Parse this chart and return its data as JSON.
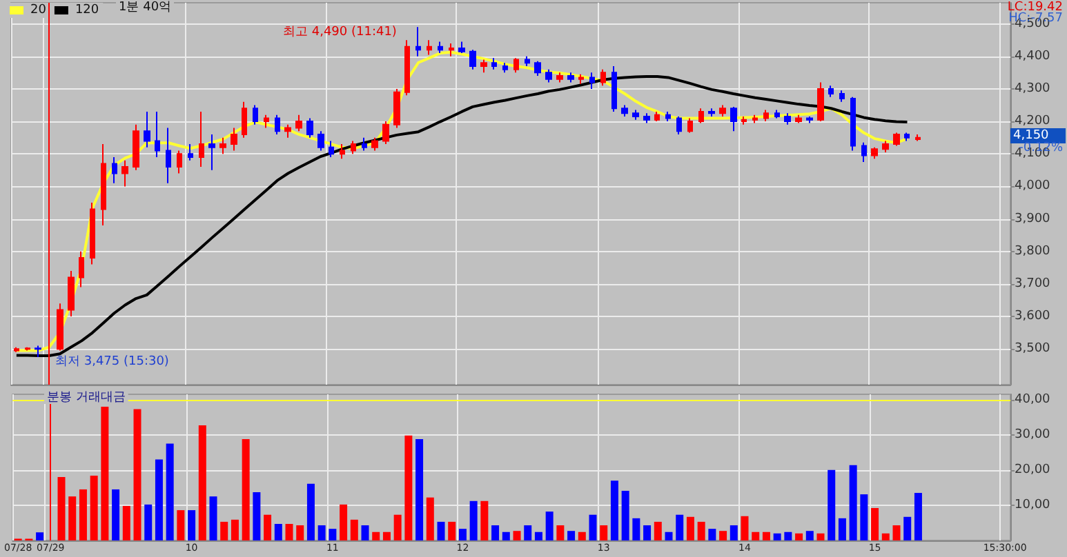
{
  "chart_data": [
    {
      "type": "candlestick",
      "title": "1분 40억",
      "legend": "top left",
      "grid": true,
      "tick_labels": "y",
      "marker": "none",
      "categories": [
        "07/28",
        null,
        null,
        "07/29",
        null,
        null,
        null,
        null,
        null,
        null,
        null,
        null,
        null,
        null,
        null,
        null,
        "10",
        null,
        null,
        null,
        null,
        null,
        null,
        null,
        null,
        null,
        null,
        null,
        null,
        "11",
        null,
        null,
        null,
        null,
        null,
        null,
        null,
        null,
        null,
        null,
        null,
        "12",
        null,
        null,
        null,
        null,
        null,
        null,
        null,
        null,
        null,
        null,
        null,
        null,
        "13",
        null,
        null,
        null,
        null,
        null,
        null,
        null,
        null,
        null,
        null,
        null,
        null,
        "14",
        null,
        null,
        null,
        null,
        null,
        null,
        null,
        null,
        null,
        null,
        null,
        "15",
        null,
        null,
        null,
        null,
        null,
        null,
        null,
        null,
        null,
        null,
        null,
        "15:30:00"
      ],
      "ohlc": [
        [
          3495,
          3505,
          3490,
          3500
        ],
        [
          3500,
          3505,
          3495,
          3502
        ],
        [
          3502,
          3510,
          3475,
          3500
        ],
        null,
        [
          3500,
          3640,
          3495,
          3620
        ],
        [
          3620,
          3740,
          3600,
          3720
        ],
        [
          3720,
          3800,
          3690,
          3780
        ],
        [
          3780,
          3950,
          3760,
          3930
        ],
        [
          3930,
          4130,
          3880,
          4070
        ],
        [
          4070,
          4090,
          4010,
          4040
        ],
        [
          4040,
          4080,
          4000,
          4060
        ],
        [
          4060,
          4190,
          4050,
          4170
        ],
        [
          4170,
          4230,
          4120,
          4140
        ],
        [
          4140,
          4230,
          4090,
          4110
        ],
        [
          4110,
          4180,
          4010,
          4060
        ],
        [
          4060,
          4110,
          4040,
          4100
        ],
        [
          4100,
          4130,
          4080,
          4090
        ],
        [
          4090,
          4230,
          4060,
          4130
        ],
        [
          4130,
          4160,
          4050,
          4120
        ],
        [
          4120,
          4150,
          4100,
          4130
        ],
        [
          4130,
          4180,
          4110,
          4160
        ],
        [
          4160,
          4260,
          4150,
          4240
        ],
        [
          4240,
          4250,
          4190,
          4200
        ],
        [
          4200,
          4220,
          4180,
          4210
        ],
        [
          4210,
          4220,
          4160,
          4170
        ],
        [
          4170,
          4190,
          4150,
          4180
        ],
        [
          4180,
          4220,
          4170,
          4200
        ],
        [
          4200,
          4210,
          4150,
          4160
        ],
        [
          4160,
          4170,
          4110,
          4120
        ],
        [
          4120,
          4140,
          4090,
          4100
        ],
        [
          4100,
          4130,
          4085,
          4110
        ],
        [
          4110,
          4140,
          4100,
          4130
        ],
        [
          4130,
          4150,
          4110,
          4120
        ],
        [
          4120,
          4150,
          4110,
          4140
        ],
        [
          4140,
          4200,
          4130,
          4190
        ],
        [
          4190,
          4300,
          4180,
          4290
        ],
        [
          4290,
          4450,
          4280,
          4430
        ],
        [
          4430,
          4490,
          4400,
          4420
        ],
        [
          4420,
          4450,
          4405,
          4430
        ],
        [
          4430,
          4445,
          4410,
          4420
        ],
        [
          4420,
          4440,
          4400,
          4425
        ],
        [
          4425,
          4445,
          4410,
          4415
        ],
        [
          4415,
          4420,
          4360,
          4370
        ],
        [
          4370,
          4390,
          4350,
          4380
        ],
        [
          4380,
          4395,
          4360,
          4370
        ],
        [
          4370,
          4380,
          4350,
          4360
        ],
        [
          4360,
          4395,
          4350,
          4390
        ],
        [
          4390,
          4400,
          4370,
          4380
        ],
        [
          4380,
          4385,
          4340,
          4350
        ],
        [
          4350,
          4360,
          4320,
          4330
        ],
        [
          4330,
          4350,
          4320,
          4340
        ],
        [
          4340,
          4350,
          4320,
          4330
        ],
        [
          4330,
          4345,
          4315,
          4335
        ],
        [
          4335,
          4350,
          4300,
          4320
        ],
        [
          4320,
          4360,
          4310,
          4350
        ],
        [
          4350,
          4370,
          4230,
          4240
        ],
        [
          4240,
          4250,
          4215,
          4225
        ],
        [
          4225,
          4235,
          4205,
          4215
        ],
        [
          4215,
          4225,
          4195,
          4205
        ],
        [
          4205,
          4230,
          4200,
          4220
        ],
        [
          4220,
          4230,
          4200,
          4210
        ],
        [
          4210,
          4215,
          4160,
          4170
        ],
        [
          4170,
          4210,
          4165,
          4200
        ],
        [
          4200,
          4240,
          4195,
          4230
        ],
        [
          4230,
          4240,
          4215,
          4225
        ],
        [
          4225,
          4250,
          4215,
          4240
        ],
        [
          4240,
          4245,
          4170,
          4200
        ],
        [
          4200,
          4215,
          4190,
          4205
        ],
        [
          4205,
          4220,
          4195,
          4210
        ],
        [
          4210,
          4235,
          4200,
          4225
        ],
        [
          4225,
          4235,
          4210,
          4215
        ],
        [
          4215,
          4225,
          4190,
          4200
        ],
        [
          4200,
          4220,
          4195,
          4210
        ],
        [
          4210,
          4215,
          4195,
          4205
        ],
        [
          4205,
          4320,
          4200,
          4300
        ],
        [
          4300,
          4310,
          4275,
          4285
        ],
        [
          4285,
          4295,
          4260,
          4270
        ],
        [
          4270,
          4275,
          4110,
          4125
        ],
        [
          4125,
          4135,
          4075,
          4095
        ],
        [
          4095,
          4120,
          4085,
          4115
        ],
        [
          4115,
          4140,
          4105,
          4130
        ],
        [
          4130,
          4165,
          4125,
          4160
        ],
        [
          4160,
          4165,
          4140,
          4150
        ],
        [
          4145,
          4160,
          4140,
          4150
        ],
        null,
        null,
        null,
        null,
        null,
        null,
        null,
        null
      ],
      "colors": [
        "#ff0000",
        "#ff0000",
        "#0000ff",
        null,
        "#ff0000",
        "#ff0000",
        "#ff0000",
        "#ff0000",
        "#ff0000",
        "#0000ff",
        "#ff0000",
        "#ff0000",
        "#0000ff",
        "#0000ff",
        "#0000ff",
        "#ff0000",
        "#0000ff",
        "#ff0000",
        "#0000ff",
        "#ff0000",
        "#ff0000",
        "#ff0000",
        "#0000ff",
        "#ff0000",
        "#0000ff",
        "#ff0000",
        "#ff0000",
        "#0000ff",
        "#0000ff",
        "#0000ff",
        "#ff0000",
        "#ff0000",
        "#0000ff",
        "#ff0000",
        "#ff0000",
        "#ff0000",
        "#ff0000",
        "#0000ff",
        "#ff0000",
        "#0000ff",
        "#ff0000",
        "#0000ff",
        "#0000ff",
        "#ff0000",
        "#0000ff",
        "#0000ff",
        "#ff0000",
        "#0000ff",
        "#0000ff",
        "#0000ff",
        "#ff0000",
        "#0000ff",
        "#ff0000",
        "#0000ff",
        "#ff0000",
        "#0000ff",
        "#0000ff",
        "#0000ff",
        "#0000ff",
        "#ff0000",
        "#0000ff",
        "#0000ff",
        "#ff0000",
        "#ff0000",
        "#0000ff",
        "#ff0000",
        "#0000ff",
        "#ff0000",
        "#ff0000",
        "#ff0000",
        "#0000ff",
        "#0000ff",
        "#ff0000",
        "#0000ff",
        "#ff0000",
        "#0000ff",
        "#0000ff",
        "#0000ff",
        "#0000ff",
        "#ff0000",
        "#ff0000",
        "#ff0000",
        "#0000ff",
        "#ff0000",
        null,
        null,
        null,
        null,
        null,
        null,
        null,
        null
      ],
      "series": [
        {
          "name": "20",
          "type": "line",
          "color": "#ffff33",
          "values": [
            3495,
            3495,
            3495,
            3505,
            3550,
            3640,
            3750,
            3934,
            4010,
            4065,
            4087,
            4100,
            4134,
            4134,
            4134,
            4125,
            4117,
            4125,
            4135,
            4145,
            4165,
            4185,
            4198,
            4190,
            4183,
            4175,
            4160,
            4150,
            4140,
            4130,
            4120,
            4117,
            4125,
            4134,
            4180,
            4240,
            4330,
            4381,
            4395,
            4410,
            4413,
            4407,
            4400,
            4393,
            4385,
            4376,
            4370,
            4365,
            4358,
            4352,
            4349,
            4344,
            4338,
            4332,
            4325,
            4305,
            4285,
            4262,
            4243,
            4230,
            4215,
            4210,
            4210,
            4210,
            4210,
            4210,
            4211,
            4212,
            4213,
            4215,
            4217,
            4219,
            4221,
            4223,
            4230,
            4240,
            4220,
            4190,
            4165,
            4147,
            4140,
            4134,
            4147,
            null,
            null,
            null,
            null,
            null,
            null,
            null,
            null,
            null
          ]
        },
        {
          "name": "120",
          "type": "line",
          "color": "#000000",
          "values": [
            3480,
            3480,
            3479,
            3479,
            3485,
            3505,
            3525,
            3550,
            3580,
            3610,
            3635,
            3655,
            3666,
            3695,
            3724,
            3754,
            3783,
            3812,
            3842,
            3871,
            3900,
            3930,
            3959,
            3988,
            4018,
            4040,
            4058,
            4075,
            4092,
            4103,
            4115,
            4125,
            4134,
            4142,
            4150,
            4158,
            4163,
            4168,
            4183,
            4199,
            4214,
            4230,
            4245,
            4252,
            4259,
            4265,
            4272,
            4279,
            4285,
            4293,
            4298,
            4305,
            4312,
            4320,
            4328,
            4332,
            4335,
            4337,
            4338,
            4338,
            4335,
            4326,
            4317,
            4307,
            4298,
            4292,
            4285,
            4279,
            4273,
            4268,
            4263,
            4258,
            4253,
            4249,
            4246,
            4240,
            4230,
            4221,
            4212,
            4206,
            4202,
            4199,
            4198,
            null,
            null,
            null,
            null,
            null,
            null,
            null,
            null,
            null
          ]
        }
      ],
      "ylim": [
        3390,
        4565
      ],
      "yticks": [
        {
          "value": 3500,
          "label": "3,500"
        },
        {
          "value": 3600,
          "label": "3,600"
        },
        {
          "value": 3700,
          "label": "3,700"
        },
        {
          "value": 3800,
          "label": "3,800"
        },
        {
          "value": 3900,
          "label": "3,900"
        },
        {
          "value": 4000,
          "label": "4,000"
        },
        {
          "value": 4100,
          "label": "4,100"
        },
        {
          "value": 4200,
          "label": "4,200"
        },
        {
          "value": 4300,
          "label": "4,300"
        },
        {
          "value": 4400,
          "label": "4,400"
        },
        {
          "value": 4500,
          "label": "4,500"
        }
      ],
      "ref_lines": [
        {
          "axis": "x",
          "value": "07/29",
          "color": "#ff0000"
        }
      ],
      "annotations": [
        "최고 4,490 (11:41)",
        "최저 3,475 (15:30)",
        "LC:19.42",
        "HC:-7.57",
        "4,150",
        "-0.12%"
      ]
    },
    {
      "type": "bar",
      "title": "분봉 거래대금",
      "legend": false,
      "grid": true,
      "categories": [
        "07/28",
        null,
        null,
        "07/29",
        null,
        null,
        null,
        null,
        null,
        null,
        null,
        null,
        null,
        null,
        null,
        null,
        "10",
        null,
        null,
        null,
        null,
        null,
        null,
        null,
        null,
        null,
        null,
        null,
        null,
        "11",
        null,
        null,
        null,
        null,
        null,
        null,
        null,
        null,
        null,
        null,
        null,
        "12",
        null,
        null,
        null,
        null,
        null,
        null,
        null,
        null,
        null,
        null,
        null,
        null,
        "13",
        null,
        null,
        null,
        null,
        null,
        null,
        null,
        null,
        null,
        null,
        null,
        null,
        "14",
        null,
        null,
        null,
        null,
        null,
        null,
        null,
        null,
        null,
        null,
        null,
        "15",
        null,
        null,
        null,
        null,
        null,
        null,
        null,
        null,
        null,
        null,
        null,
        "15:30:00"
      ],
      "values": [
        0.5,
        0.5,
        2.3,
        null,
        18,
        12.5,
        14.5,
        18.4,
        38,
        14.5,
        9.8,
        37.3,
        10.2,
        23,
        27.5,
        8.6,
        8.6,
        32.7,
        12.5,
        5.3,
        5.9,
        28.8,
        13.7,
        7.3,
        4.7,
        4.7,
        4.3,
        16.1,
        4.3,
        3.3,
        10.2,
        5.9,
        4.3,
        2.4,
        2.4,
        7.3,
        29.8,
        28.8,
        12.2,
        5.3,
        5.3,
        3.3,
        11.2,
        11.2,
        4.3,
        2.4,
        2.7,
        4.3,
        2.4,
        8.2,
        4.3,
        2.7,
        2.4,
        7.3,
        4.3,
        17,
        14.1,
        6.3,
        4.3,
        5.3,
        2.4,
        7.3,
        6.7,
        5.3,
        3.3,
        2.7,
        4.3,
        6.9,
        2.4,
        2.4,
        2,
        2.4,
        2,
        2.7,
        2,
        20,
        6.3,
        21.4,
        13.1,
        9.2,
        2,
        4.3,
        6.7,
        13.5,
        null,
        null,
        null,
        null,
        null,
        null,
        null,
        null
      ],
      "colors": [
        "#ff0000",
        "#ff0000",
        "#0000ff",
        null,
        "#ff0000",
        "#ff0000",
        "#ff0000",
        "#ff0000",
        "#ff0000",
        "#0000ff",
        "#ff0000",
        "#ff0000",
        "#0000ff",
        "#0000ff",
        "#0000ff",
        "#ff0000",
        "#0000ff",
        "#ff0000",
        "#0000ff",
        "#ff0000",
        "#ff0000",
        "#ff0000",
        "#0000ff",
        "#ff0000",
        "#0000ff",
        "#ff0000",
        "#ff0000",
        "#0000ff",
        "#0000ff",
        "#0000ff",
        "#ff0000",
        "#ff0000",
        "#0000ff",
        "#ff0000",
        "#ff0000",
        "#ff0000",
        "#ff0000",
        "#0000ff",
        "#ff0000",
        "#0000ff",
        "#ff0000",
        "#0000ff",
        "#0000ff",
        "#ff0000",
        "#0000ff",
        "#0000ff",
        "#ff0000",
        "#0000ff",
        "#0000ff",
        "#0000ff",
        "#ff0000",
        "#0000ff",
        "#ff0000",
        "#0000ff",
        "#ff0000",
        "#0000ff",
        "#0000ff",
        "#0000ff",
        "#0000ff",
        "#ff0000",
        "#0000ff",
        "#0000ff",
        "#ff0000",
        "#ff0000",
        "#0000ff",
        "#ff0000",
        "#0000ff",
        "#ff0000",
        "#ff0000",
        "#ff0000",
        "#0000ff",
        "#0000ff",
        "#ff0000",
        "#0000ff",
        "#ff0000",
        "#0000ff",
        "#0000ff",
        "#0000ff",
        "#0000ff",
        "#ff0000",
        "#ff0000",
        "#ff0000",
        "#0000ff",
        "#0000ff",
        null,
        null,
        null,
        null,
        null,
        null,
        null,
        null
      ],
      "ylim": [
        0,
        41.5
      ],
      "yticks": [
        {
          "value": 10,
          "label": "10,00"
        },
        {
          "value": 20,
          "label": "20,00"
        },
        {
          "value": 30,
          "label": "30,00"
        },
        {
          "value": 40,
          "label": "40,00"
        }
      ],
      "ref_lines": [
        {
          "axis": "y",
          "value": 40,
          "color": "#ffff33"
        },
        {
          "axis": "x",
          "value": "07/29",
          "color": "#ff0000"
        }
      ]
    }
  ]
}
